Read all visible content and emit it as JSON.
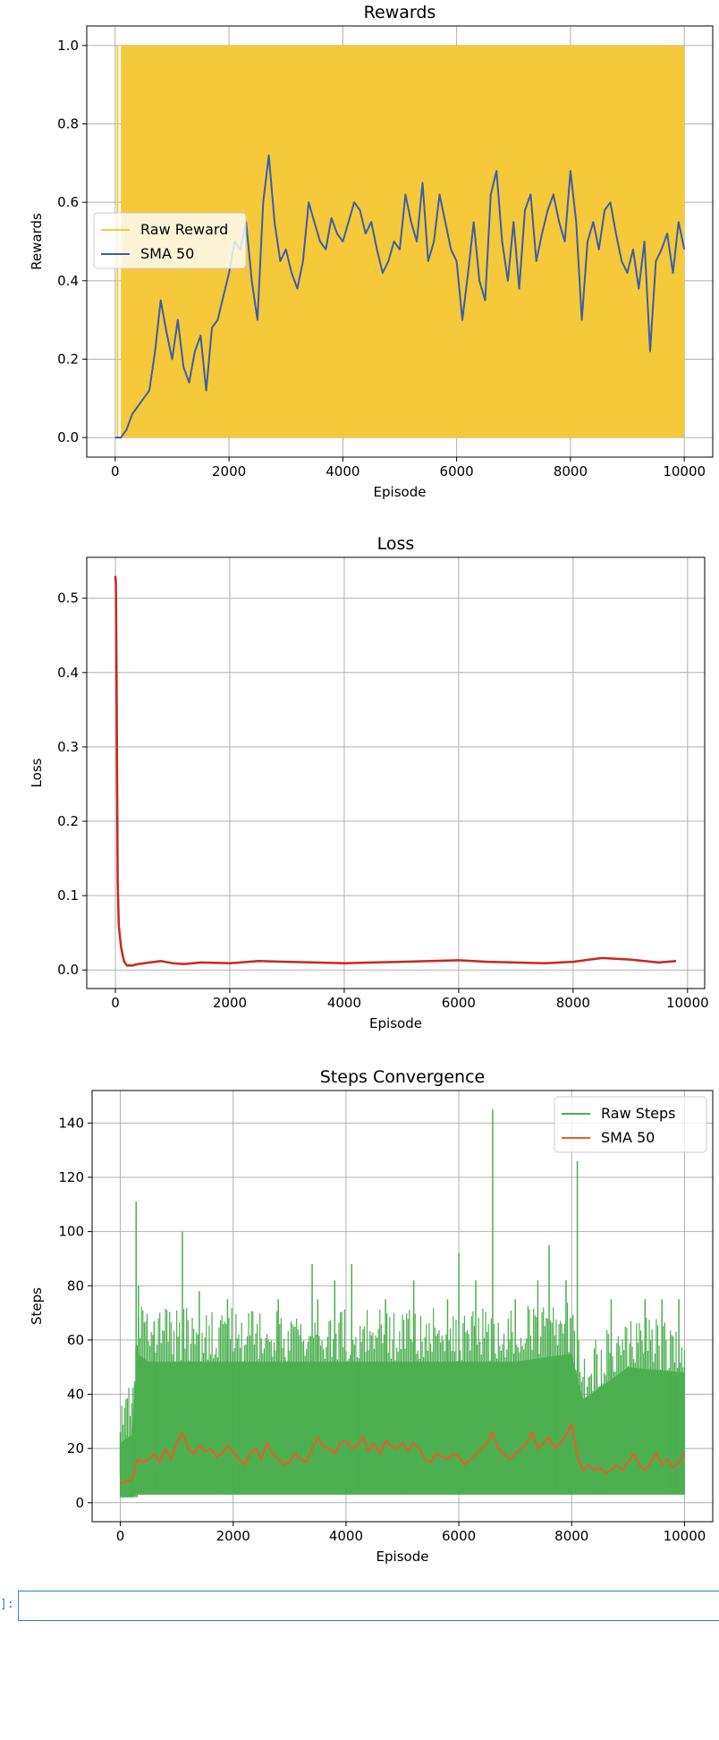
{
  "notebook": {
    "cell_prompt": "]:"
  },
  "colors": {
    "grid": "#b0b0b0",
    "axis": "#000000"
  },
  "chart_data": [
    {
      "type": "line",
      "title": "Rewards",
      "xlabel": "Episode",
      "ylabel": "Rewards",
      "xlim": [
        -500,
        10500
      ],
      "ylim": [
        -0.05,
        1.05
      ],
      "xticks": [
        0,
        2000,
        4000,
        6000,
        8000,
        10000
      ],
      "yticks": [
        0.0,
        0.2,
        0.4,
        0.6,
        0.8,
        1.0
      ],
      "ytick_labels": [
        "0.0",
        "0.2",
        "0.4",
        "0.6",
        "0.8",
        "1.0"
      ],
      "grid": true,
      "legend": "center-left",
      "series": [
        {
          "name": "Raw Reward",
          "color": "#f5c93a",
          "style": "band",
          "band": {
            "x_start": 100,
            "x_end": 10000,
            "low": 0,
            "high": 1
          }
        },
        {
          "name": "SMA 50",
          "color": "#3a5ea8",
          "x": [
            0,
            100,
            200,
            300,
            400,
            500,
            600,
            700,
            800,
            900,
            1000,
            1100,
            1200,
            1300,
            1400,
            1500,
            1600,
            1700,
            1800,
            1900,
            2000,
            2100,
            2200,
            2300,
            2400,
            2500,
            2600,
            2700,
            2800,
            2900,
            3000,
            3100,
            3200,
            3300,
            3400,
            3500,
            3600,
            3700,
            3800,
            3900,
            4000,
            4100,
            4200,
            4300,
            4400,
            4500,
            4600,
            4700,
            4800,
            4900,
            5000,
            5100,
            5200,
            5300,
            5400,
            5500,
            5600,
            5700,
            5800,
            5900,
            6000,
            6100,
            6200,
            6300,
            6400,
            6500,
            6600,
            6700,
            6800,
            6900,
            7000,
            7100,
            7200,
            7300,
            7400,
            7500,
            7600,
            7700,
            7800,
            7900,
            8000,
            8100,
            8200,
            8300,
            8400,
            8500,
            8600,
            8700,
            8800,
            8900,
            9000,
            9100,
            9200,
            9300,
            9400,
            9500,
            9600,
            9700,
            9800,
            9900,
            10000
          ],
          "values": [
            0.0,
            0.0,
            0.02,
            0.06,
            0.08,
            0.1,
            0.12,
            0.22,
            0.35,
            0.27,
            0.2,
            0.3,
            0.18,
            0.14,
            0.22,
            0.26,
            0.12,
            0.28,
            0.3,
            0.36,
            0.42,
            0.5,
            0.48,
            0.55,
            0.4,
            0.3,
            0.6,
            0.72,
            0.55,
            0.45,
            0.48,
            0.42,
            0.38,
            0.45,
            0.6,
            0.55,
            0.5,
            0.48,
            0.56,
            0.52,
            0.5,
            0.55,
            0.6,
            0.58,
            0.52,
            0.55,
            0.48,
            0.42,
            0.45,
            0.5,
            0.48,
            0.62,
            0.55,
            0.5,
            0.65,
            0.45,
            0.5,
            0.62,
            0.55,
            0.48,
            0.45,
            0.3,
            0.42,
            0.55,
            0.4,
            0.35,
            0.62,
            0.68,
            0.5,
            0.4,
            0.55,
            0.38,
            0.58,
            0.62,
            0.45,
            0.52,
            0.58,
            0.62,
            0.55,
            0.5,
            0.68,
            0.55,
            0.3,
            0.5,
            0.55,
            0.48,
            0.58,
            0.6,
            0.52,
            0.45,
            0.42,
            0.48,
            0.38,
            0.5,
            0.22,
            0.45,
            0.48,
            0.52,
            0.42,
            0.55,
            0.48
          ]
        }
      ]
    },
    {
      "type": "line",
      "title": "Loss",
      "xlabel": "Episode",
      "ylabel": "Loss",
      "xlim": [
        -500,
        10300
      ],
      "ylim": [
        -0.025,
        0.555
      ],
      "xticks": [
        0,
        2000,
        4000,
        6000,
        8000,
        10000
      ],
      "yticks": [
        0.0,
        0.1,
        0.2,
        0.3,
        0.4,
        0.5
      ],
      "ytick_labels": [
        "0.0",
        "0.1",
        "0.2",
        "0.3",
        "0.4",
        "0.5"
      ],
      "grid": true,
      "series": [
        {
          "name": "",
          "color": "#c8281e",
          "x": [
            0,
            10,
            20,
            40,
            60,
            100,
            150,
            200,
            300,
            400,
            600,
            800,
            1000,
            1200,
            1500,
            2000,
            2500,
            3000,
            3500,
            4000,
            4500,
            5000,
            5500,
            6000,
            6500,
            7000,
            7500,
            8000,
            8500,
            9000,
            9500,
            9800
          ],
          "values": [
            0.53,
            0.52,
            0.4,
            0.12,
            0.06,
            0.03,
            0.012,
            0.006,
            0.006,
            0.008,
            0.01,
            0.012,
            0.009,
            0.008,
            0.01,
            0.009,
            0.012,
            0.011,
            0.01,
            0.009,
            0.01,
            0.011,
            0.012,
            0.013,
            0.011,
            0.01,
            0.009,
            0.011,
            0.016,
            0.014,
            0.01,
            0.012
          ]
        }
      ]
    },
    {
      "type": "line",
      "title": "Steps Convergence",
      "xlabel": "Episode",
      "ylabel": "Steps",
      "xlim": [
        -500,
        10500
      ],
      "ylim": [
        -7,
        152
      ],
      "xticks": [
        0,
        2000,
        4000,
        6000,
        8000,
        10000
      ],
      "yticks": [
        0,
        20,
        40,
        60,
        80,
        100,
        120,
        140
      ],
      "ytick_labels": [
        "0",
        "20",
        "40",
        "60",
        "80",
        "100",
        "120",
        "140"
      ],
      "grid": true,
      "legend": "top-right",
      "series": [
        {
          "name": "Raw Steps",
          "color": "#4caf50",
          "style": "band",
          "band_x": [
            0,
            200,
            300,
            500,
            1000,
            2000,
            3000,
            4000,
            5000,
            6000,
            7000,
            8000,
            8200,
            9000,
            10000
          ],
          "band_low": [
            2,
            2,
            3,
            3,
            3,
            3,
            3,
            3,
            3,
            3,
            3,
            3,
            3,
            3,
            3
          ],
          "band_high": [
            22,
            25,
            55,
            52,
            52,
            52,
            52,
            52,
            52,
            52,
            52,
            55,
            38,
            50,
            48
          ],
          "spikes_x": [
            0,
            100,
            280,
            320,
            600,
            1100,
            1400,
            1900,
            2800,
            3400,
            3500,
            3800,
            4100,
            4700,
            5200,
            5800,
            6000,
            6300,
            6600,
            7000,
            7400,
            7600,
            7900,
            8100,
            8700,
            9300,
            9600,
            9900
          ],
          "spikes_y": [
            26,
            25,
            111,
            80,
            67,
            100,
            78,
            75,
            75,
            88,
            75,
            82,
            88,
            75,
            82,
            75,
            92,
            82,
            145,
            75,
            82,
            95,
            82,
            126,
            75,
            75,
            75,
            75
          ]
        },
        {
          "name": "SMA 50",
          "color": "#f05a28",
          "x": [
            0,
            100,
            200,
            300,
            400,
            500,
            600,
            700,
            800,
            900,
            1000,
            1100,
            1200,
            1300,
            1400,
            1500,
            1600,
            1700,
            1800,
            1900,
            2000,
            2100,
            2200,
            2300,
            2400,
            2500,
            2600,
            2700,
            2800,
            2900,
            3000,
            3100,
            3200,
            3300,
            3400,
            3500,
            3600,
            3700,
            3800,
            3900,
            4000,
            4100,
            4200,
            4300,
            4400,
            4500,
            4600,
            4700,
            4800,
            4900,
            5000,
            5100,
            5200,
            5300,
            5400,
            5500,
            5600,
            5700,
            5800,
            5900,
            6000,
            6100,
            6200,
            6300,
            6400,
            6500,
            6600,
            6700,
            6800,
            6900,
            7000,
            7100,
            7200,
            7300,
            7400,
            7500,
            7600,
            7700,
            7800,
            7900,
            8000,
            8100,
            8200,
            8300,
            8400,
            8500,
            8600,
            8700,
            8800,
            8900,
            9000,
            9100,
            9200,
            9300,
            9400,
            9500,
            9600,
            9700,
            9800,
            9900,
            10000
          ],
          "values": [
            7,
            8,
            8,
            16,
            15,
            16,
            18,
            15,
            20,
            16,
            22,
            26,
            20,
            18,
            21,
            19,
            20,
            17,
            18,
            21,
            19,
            16,
            14,
            18,
            20,
            16,
            22,
            18,
            16,
            14,
            15,
            18,
            16,
            15,
            20,
            24,
            21,
            20,
            18,
            22,
            23,
            20,
            21,
            24,
            19,
            22,
            18,
            23,
            21,
            20,
            22,
            19,
            22,
            20,
            16,
            15,
            18,
            17,
            16,
            18,
            17,
            14,
            16,
            18,
            20,
            22,
            26,
            20,
            18,
            16,
            18,
            20,
            22,
            26,
            20,
            22,
            24,
            20,
            22,
            25,
            29,
            17,
            12,
            14,
            12,
            13,
            11,
            12,
            14,
            12,
            15,
            18,
            14,
            12,
            15,
            18,
            14,
            16,
            13,
            15,
            18
          ]
        }
      ]
    }
  ]
}
